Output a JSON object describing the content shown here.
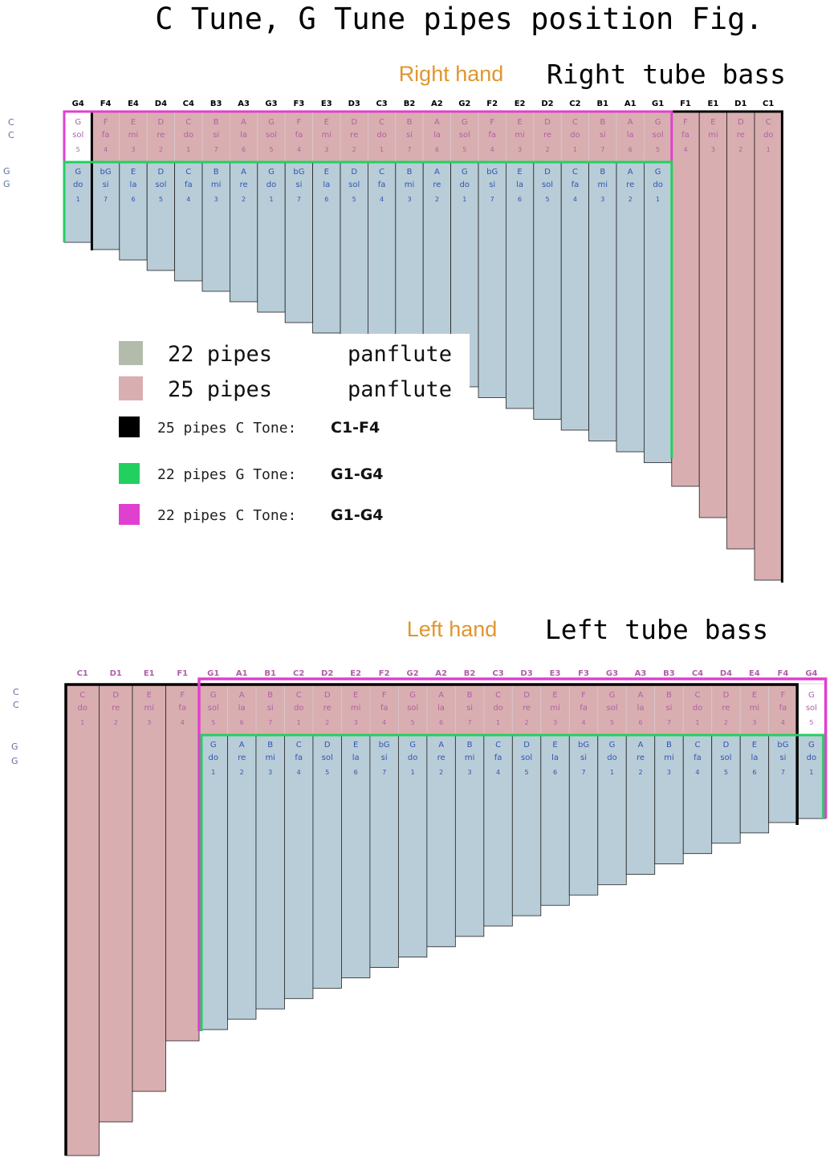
{
  "title": "C Tune, G Tune pipes position Fig.",
  "colors": {
    "pink_pipe": "#d9aeb0",
    "blue_pipe": "#b8cdd8",
    "gray_swatch": "#b3bcaa",
    "pink_text": "#b060a8",
    "blue_text": "#3355b0",
    "magenta": "#e040d0",
    "green": "#22d060",
    "black": "#000000",
    "orange": "#e0962e"
  },
  "right": {
    "hand_label": "Right hand",
    "bass_label": "Right tube bass",
    "note_names": [
      "G4",
      "F4",
      "E4",
      "D4",
      "C4",
      "B3",
      "A3",
      "G3",
      "F3",
      "E3",
      "D3",
      "C3",
      "B2",
      "A2",
      "G2",
      "F2",
      "E2",
      "D2",
      "C2",
      "B1",
      "A1",
      "G1",
      "F1",
      "E1",
      "D1",
      "C1"
    ],
    "c_row": [
      {
        "n": "G",
        "s": "sol",
        "d": "5"
      },
      {
        "n": "F",
        "s": "fa",
        "d": "4"
      },
      {
        "n": "E",
        "s": "mi",
        "d": "3"
      },
      {
        "n": "D",
        "s": "re",
        "d": "2"
      },
      {
        "n": "C",
        "s": "do",
        "d": "1"
      },
      {
        "n": "B",
        "s": "si",
        "d": "7"
      },
      {
        "n": "A",
        "s": "la",
        "d": "6"
      },
      {
        "n": "G",
        "s": "sol",
        "d": "5"
      },
      {
        "n": "F",
        "s": "fa",
        "d": "4"
      },
      {
        "n": "E",
        "s": "mi",
        "d": "3"
      },
      {
        "n": "D",
        "s": "re",
        "d": "2"
      },
      {
        "n": "C",
        "s": "do",
        "d": "1"
      },
      {
        "n": "B",
        "s": "si",
        "d": "7"
      },
      {
        "n": "A",
        "s": "la",
        "d": "6"
      },
      {
        "n": "G",
        "s": "sol",
        "d": "5"
      },
      {
        "n": "F",
        "s": "fa",
        "d": "4"
      },
      {
        "n": "E",
        "s": "mi",
        "d": "3"
      },
      {
        "n": "D",
        "s": "re",
        "d": "2"
      },
      {
        "n": "C",
        "s": "do",
        "d": "1"
      },
      {
        "n": "B",
        "s": "si",
        "d": "7"
      },
      {
        "n": "A",
        "s": "la",
        "d": "6"
      },
      {
        "n": "G",
        "s": "sol",
        "d": "5"
      },
      {
        "n": "F",
        "s": "fa",
        "d": "4"
      },
      {
        "n": "E",
        "s": "mi",
        "d": "3"
      },
      {
        "n": "D",
        "s": "re",
        "d": "2"
      },
      {
        "n": "C",
        "s": "do",
        "d": "1"
      }
    ],
    "g_row": [
      {
        "n": "G",
        "s": "do",
        "d": "1"
      },
      {
        "n": "bG",
        "s": "si",
        "d": "7"
      },
      {
        "n": "E",
        "s": "la",
        "d": "6"
      },
      {
        "n": "D",
        "s": "sol",
        "d": "5"
      },
      {
        "n": "C",
        "s": "fa",
        "d": "4"
      },
      {
        "n": "B",
        "s": "mi",
        "d": "3"
      },
      {
        "n": "A",
        "s": "re",
        "d": "2"
      },
      {
        "n": "G",
        "s": "do",
        "d": "1"
      },
      {
        "n": "bG",
        "s": "si",
        "d": "7"
      },
      {
        "n": "E",
        "s": "la",
        "d": "6"
      },
      {
        "n": "D",
        "s": "sol",
        "d": "5"
      },
      {
        "n": "C",
        "s": "fa",
        "d": "4"
      },
      {
        "n": "B",
        "s": "mi",
        "d": "3"
      },
      {
        "n": "A",
        "s": "re",
        "d": "2"
      },
      {
        "n": "G",
        "s": "do",
        "d": "1"
      },
      {
        "n": "bG",
        "s": "si",
        "d": "7"
      },
      {
        "n": "E",
        "s": "la",
        "d": "6"
      },
      {
        "n": "D",
        "s": "sol",
        "d": "5"
      },
      {
        "n": "C",
        "s": "fa",
        "d": "4"
      },
      {
        "n": "B",
        "s": "mi",
        "d": "3"
      },
      {
        "n": "A",
        "s": "re",
        "d": "2"
      },
      {
        "n": "G",
        "s": "do",
        "d": "1"
      }
    ],
    "row_labels": {
      "c": "C",
      "g": "G"
    }
  },
  "left": {
    "hand_label": "Left hand",
    "bass_label": "Left tube bass",
    "note_names": [
      "C1",
      "D1",
      "E1",
      "F1",
      "G1",
      "A1",
      "B1",
      "C2",
      "D2",
      "E2",
      "F2",
      "G2",
      "A2",
      "B2",
      "C3",
      "D3",
      "E3",
      "F3",
      "G3",
      "A3",
      "B3",
      "C4",
      "D4",
      "E4",
      "F4",
      "G4"
    ],
    "c_row": [
      {
        "n": "C",
        "s": "do",
        "d": "1"
      },
      {
        "n": "D",
        "s": "re",
        "d": "2"
      },
      {
        "n": "E",
        "s": "mi",
        "d": "3"
      },
      {
        "n": "F",
        "s": "fa",
        "d": "4"
      },
      {
        "n": "G",
        "s": "sol",
        "d": "5"
      },
      {
        "n": "A",
        "s": "la",
        "d": "6"
      },
      {
        "n": "B",
        "s": "si",
        "d": "7"
      },
      {
        "n": "C",
        "s": "do",
        "d": "1"
      },
      {
        "n": "D",
        "s": "re",
        "d": "2"
      },
      {
        "n": "E",
        "s": "mi",
        "d": "3"
      },
      {
        "n": "F",
        "s": "fa",
        "d": "4"
      },
      {
        "n": "G",
        "s": "sol",
        "d": "5"
      },
      {
        "n": "A",
        "s": "la",
        "d": "6"
      },
      {
        "n": "B",
        "s": "si",
        "d": "7"
      },
      {
        "n": "C",
        "s": "do",
        "d": "1"
      },
      {
        "n": "D",
        "s": "re",
        "d": "2"
      },
      {
        "n": "E",
        "s": "mi",
        "d": "3"
      },
      {
        "n": "F",
        "s": "fa",
        "d": "4"
      },
      {
        "n": "G",
        "s": "sol",
        "d": "5"
      },
      {
        "n": "A",
        "s": "la",
        "d": "6"
      },
      {
        "n": "B",
        "s": "si",
        "d": "7"
      },
      {
        "n": "C",
        "s": "do",
        "d": "1"
      },
      {
        "n": "D",
        "s": "re",
        "d": "2"
      },
      {
        "n": "E",
        "s": "mi",
        "d": "3"
      },
      {
        "n": "F",
        "s": "fa",
        "d": "4"
      },
      {
        "n": "G",
        "s": "sol",
        "d": "5"
      }
    ],
    "g_row": [
      {
        "n": "G",
        "s": "do",
        "d": "1"
      },
      {
        "n": "A",
        "s": "re",
        "d": "2"
      },
      {
        "n": "B",
        "s": "mi",
        "d": "3"
      },
      {
        "n": "C",
        "s": "fa",
        "d": "4"
      },
      {
        "n": "D",
        "s": "sol",
        "d": "5"
      },
      {
        "n": "E",
        "s": "la",
        "d": "6"
      },
      {
        "n": "bG",
        "s": "si",
        "d": "7"
      },
      {
        "n": "G",
        "s": "do",
        "d": "1"
      },
      {
        "n": "A",
        "s": "re",
        "d": "2"
      },
      {
        "n": "B",
        "s": "mi",
        "d": "3"
      },
      {
        "n": "C",
        "s": "fa",
        "d": "4"
      },
      {
        "n": "D",
        "s": "sol",
        "d": "5"
      },
      {
        "n": "E",
        "s": "la",
        "d": "6"
      },
      {
        "n": "bG",
        "s": "si",
        "d": "7"
      },
      {
        "n": "G",
        "s": "do",
        "d": "1"
      },
      {
        "n": "A",
        "s": "re",
        "d": "2"
      },
      {
        "n": "B",
        "s": "mi",
        "d": "3"
      },
      {
        "n": "C",
        "s": "fa",
        "d": "4"
      },
      {
        "n": "D",
        "s": "sol",
        "d": "5"
      },
      {
        "n": "E",
        "s": "la",
        "d": "6"
      },
      {
        "n": "bG",
        "s": "si",
        "d": "7"
      },
      {
        "n": "G",
        "s": "do",
        "d": "1"
      }
    ],
    "row_labels": {
      "c": "C",
      "g": "G"
    }
  },
  "legend": [
    {
      "swatch": "gray",
      "count": "22 pipes",
      "name": "panflute"
    },
    {
      "swatch": "pink",
      "count": "25 pipes",
      "name": "panflute"
    },
    {
      "swatch": "black",
      "text": "25 pipes C Tone:",
      "range": "C1-F4"
    },
    {
      "swatch": "green",
      "text": "22 pipes G Tone:",
      "range": "G1-G4"
    },
    {
      "swatch": "magenta",
      "text": "22 pipes C Tone:",
      "range": "G1-G4"
    }
  ]
}
